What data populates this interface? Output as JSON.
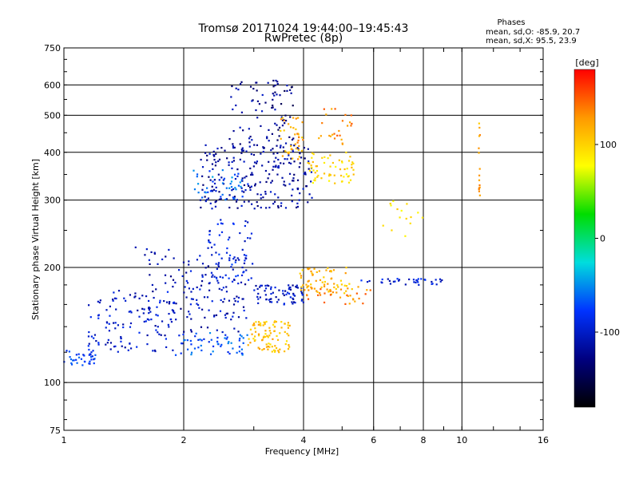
{
  "chart_data": {
    "type": "scatter",
    "title": "Tromsø 20171024  19:44:00–19:45:43",
    "subtitle": "RwPretec (8p)",
    "xlabel": "Frequency [MHz]",
    "ylabel": "Stationary phase Virtual Height [km]",
    "x_scale": "log",
    "y_scale": "log",
    "xlim": [
      1,
      16
    ],
    "ylim": [
      75,
      750
    ],
    "x_ticks": [
      1,
      2,
      4,
      6,
      8,
      10,
      16
    ],
    "y_ticks": [
      75,
      100,
      200,
      300,
      400,
      500,
      600,
      750
    ],
    "x_grid": [
      2,
      4,
      6,
      8,
      10
    ],
    "y_grid": [
      100,
      200,
      300,
      400,
      500,
      600
    ],
    "grid": true,
    "stats_header": "Phases",
    "stats": [
      "mean, sd,O: -85.9, 20.7",
      "mean, sd,X:  95.5, 23.9"
    ],
    "colorbar": {
      "label": "[deg]",
      "range": [
        -180,
        180
      ],
      "ticks": [
        100,
        0,
        -100
      ],
      "colors": [
        "#ff0000",
        "#ff9900",
        "#ffff00",
        "#00dd00",
        "#00dddd",
        "#0033ff",
        "#000080",
        "#000000"
      ]
    },
    "series": [
      {
        "clusters": [
          {
            "x": [
              1.0,
              1.2
            ],
            "y": [
              110,
              122
            ],
            "phase": -75,
            "n": 35
          },
          {
            "x": [
              1.15,
              1.9
            ],
            "y": [
              120,
              175
            ],
            "phase": -100,
            "n": 120
          },
          {
            "x": [
              1.5,
              2.0
            ],
            "y": [
              145,
              230
            ],
            "phase": -110,
            "n": 40
          },
          {
            "x": [
              1.9,
              2.9
            ],
            "y": [
              118,
              135
            ],
            "phase": -70,
            "n": 60
          },
          {
            "x": [
              2.0,
              2.9
            ],
            "y": [
              135,
              215
            ],
            "phase": -105,
            "n": 110
          },
          {
            "x": [
              2.3,
              3.0
            ],
            "y": [
              185,
              270
            ],
            "phase": -90,
            "n": 60
          },
          {
            "x": [
              2.2,
              4.2
            ],
            "y": [
              285,
              420
            ],
            "phase": -115,
            "n": 230
          },
          {
            "x": [
              2.1,
              2.9
            ],
            "y": [
              300,
              360
            ],
            "phase": -60,
            "n": 40
          },
          {
            "x": [
              2.6,
              3.7
            ],
            "y": [
              420,
              620
            ],
            "phase": -120,
            "n": 60
          },
          {
            "x": [
              3.0,
              4.0
            ],
            "y": [
              160,
              180
            ],
            "phase": -105,
            "n": 70
          },
          {
            "x": [
              3.3,
              3.8
            ],
            "y": [
              400,
              620
            ],
            "phase": -130,
            "n": 25
          },
          {
            "x": [
              5.5,
              9.0
            ],
            "y": [
              180,
              187
            ],
            "phase": -95,
            "n": 35
          }
        ]
      },
      {
        "clusters": [
          {
            "x": [
              2.9,
              3.7
            ],
            "y": [
              120,
              145
            ],
            "phase": 110,
            "n": 90
          },
          {
            "x": [
              3.5,
              4.0
            ],
            "y": [
              380,
              500
            ],
            "phase": 120,
            "n": 40
          },
          {
            "x": [
              3.9,
              5.3
            ],
            "y": [
              170,
              200
            ],
            "phase": 115,
            "n": 70
          },
          {
            "x": [
              4.1,
              5.4
            ],
            "y": [
              330,
              400
            ],
            "phase": 95,
            "n": 60
          },
          {
            "x": [
              4.3,
              5.3
            ],
            "y": [
              420,
              520
            ],
            "phase": 135,
            "n": 25
          },
          {
            "x": [
              4.0,
              5.9
            ],
            "y": [
              160,
              178
            ],
            "phase": 135,
            "n": 30
          },
          {
            "x": [
              6.3,
              8.0
            ],
            "y": [
              240,
              300
            ],
            "phase": 90,
            "n": 15
          },
          {
            "x": [
              11.0,
              11.1
            ],
            "y": [
              300,
              480
            ],
            "phase": 120,
            "n": 15
          }
        ]
      }
    ]
  }
}
